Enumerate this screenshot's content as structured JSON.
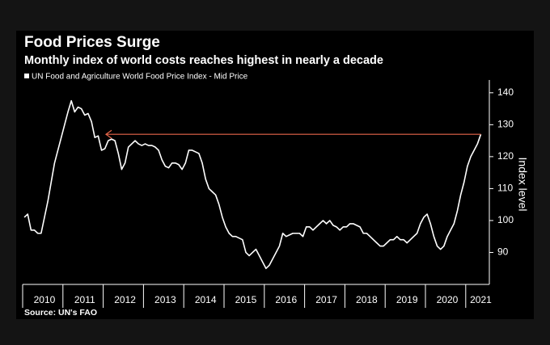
{
  "chart_data": {
    "type": "line",
    "title": "Food Prices Surge",
    "subtitle": "Monthly index of world costs reaches highest in nearly a decade",
    "source": "Source: UN's FAO",
    "y_label": "Index level",
    "categories": [
      null,
      null,
      null,
      null,
      null,
      null,
      "2010",
      null,
      null,
      null,
      null,
      null,
      null,
      null,
      null,
      null,
      null,
      null,
      "2011",
      null,
      null,
      null,
      null,
      null,
      null,
      null,
      null,
      null,
      null,
      null,
      "2012",
      null,
      null,
      null,
      null,
      null,
      null,
      null,
      null,
      null,
      null,
      null,
      "2013",
      null,
      null,
      null,
      null,
      null,
      null,
      null,
      null,
      null,
      null,
      null,
      "2014",
      null,
      null,
      null,
      null,
      null,
      null,
      null,
      null,
      null,
      null,
      null,
      "2015",
      null,
      null,
      null,
      null,
      null,
      null,
      null,
      null,
      null,
      null,
      null,
      "2016",
      null,
      null,
      null,
      null,
      null,
      null,
      null,
      null,
      null,
      null,
      null,
      "2017",
      null,
      null,
      null,
      null,
      null,
      null,
      null,
      null,
      null,
      null,
      null,
      "2018",
      null,
      null,
      null,
      null,
      null,
      null,
      null,
      null,
      null,
      null,
      null,
      "2019",
      null,
      null,
      null,
      null,
      null,
      null,
      null,
      null,
      null,
      null,
      null,
      "2020",
      null,
      null,
      null,
      null,
      null,
      null,
      null,
      null,
      null,
      "2021"
    ],
    "series": [
      {
        "name": "UN Food and Agriculture World Food Price Index - Mid Price",
        "color": "#ffffff",
        "values": [
          101,
          102,
          97,
          97,
          96,
          96,
          101,
          106,
          112,
          118,
          122,
          126,
          130,
          134,
          137.5,
          134,
          135.5,
          135,
          133,
          133.5,
          131,
          126,
          126.5,
          122,
          122.5,
          125,
          125.5,
          125,
          121,
          116,
          118,
          123,
          124,
          125,
          124,
          123.5,
          124,
          123.5,
          123.5,
          123,
          122,
          119,
          117,
          116.5,
          118,
          118,
          117.5,
          116,
          118,
          122,
          122,
          121.5,
          121,
          118,
          113,
          110,
          109,
          108,
          105,
          101,
          98,
          96,
          95,
          95,
          94.5,
          94,
          90,
          89,
          90,
          91,
          89,
          87,
          85,
          86,
          88,
          90,
          92,
          96,
          95,
          95.5,
          96,
          96,
          96,
          95,
          98,
          98,
          97,
          98,
          99,
          100,
          99,
          100,
          98.5,
          98,
          97,
          98,
          98,
          99,
          99,
          98.5,
          98,
          96,
          96,
          95,
          94,
          93,
          92,
          92,
          93,
          94,
          94,
          95,
          94,
          94,
          93,
          94,
          95,
          96,
          99,
          101,
          102,
          99,
          95,
          92,
          91,
          92,
          95,
          97,
          99,
          103,
          108,
          112,
          117,
          120,
          122,
          124,
          127
        ]
      }
    ],
    "ylim": [
      80,
      144
    ],
    "yticks": [
      90,
      100,
      110,
      120,
      130,
      140
    ],
    "annotation_color": "#e8674a"
  }
}
